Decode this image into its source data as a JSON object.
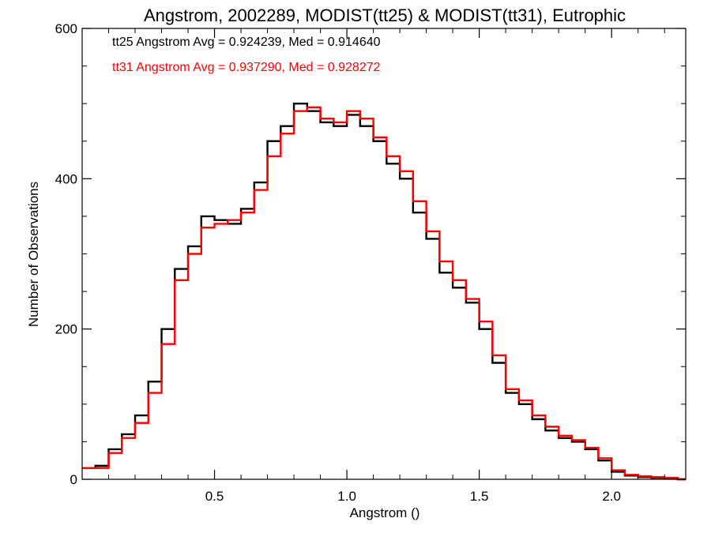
{
  "chart_data": {
    "type": "line",
    "step": true,
    "title": "Angstrom, 2002289, MODIST(tt25) & MODIST(tt31), Eutrophic",
    "xlabel": "Angstrom ()",
    "ylabel": "Number of Observations",
    "xlim": [
      0.0,
      2.28
    ],
    "ylim": [
      0,
      600
    ],
    "xticks": [
      0.5,
      1.0,
      1.5,
      2.0
    ],
    "xtick_labels": [
      "0.5",
      "1.0",
      "1.5",
      "2.0"
    ],
    "yticks": [
      0,
      200,
      400,
      600
    ],
    "ytick_labels": [
      "0",
      "200",
      "400",
      "600"
    ],
    "grid": false,
    "annotations": [
      {
        "text": "tt25 Angstrom Avg = 0.924239, Med = 0.914640",
        "color": "#000000"
      },
      {
        "text": "tt31 Angstrom Avg = 0.937290, Med = 0.928272",
        "color": "#ff0000"
      }
    ],
    "series": [
      {
        "color": "#000000",
        "x": [
          0.0,
          0.05,
          0.1,
          0.15,
          0.2,
          0.25,
          0.3,
          0.35,
          0.4,
          0.45,
          0.5,
          0.55,
          0.6,
          0.65,
          0.7,
          0.75,
          0.8,
          0.85,
          0.9,
          0.95,
          1.0,
          1.05,
          1.1,
          1.15,
          1.2,
          1.25,
          1.3,
          1.35,
          1.4,
          1.45,
          1.5,
          1.55,
          1.6,
          1.65,
          1.7,
          1.75,
          1.8,
          1.85,
          1.9,
          1.95,
          2.0,
          2.05,
          2.1,
          2.15,
          2.2,
          2.25
        ],
        "values": [
          15,
          18,
          40,
          60,
          85,
          130,
          200,
          280,
          310,
          350,
          345,
          340,
          360,
          395,
          450,
          470,
          500,
          490,
          475,
          470,
          485,
          470,
          450,
          420,
          400,
          355,
          320,
          275,
          255,
          235,
          200,
          155,
          115,
          100,
          80,
          65,
          55,
          50,
          40,
          25,
          10,
          5,
          3,
          2,
          1,
          0
        ]
      },
      {
        "color": "#ff0000",
        "x": [
          0.0,
          0.05,
          0.1,
          0.15,
          0.2,
          0.25,
          0.3,
          0.35,
          0.4,
          0.45,
          0.5,
          0.55,
          0.6,
          0.65,
          0.7,
          0.75,
          0.8,
          0.85,
          0.9,
          0.95,
          1.0,
          1.05,
          1.1,
          1.15,
          1.2,
          1.25,
          1.3,
          1.35,
          1.4,
          1.45,
          1.5,
          1.55,
          1.6,
          1.65,
          1.7,
          1.75,
          1.8,
          1.85,
          1.9,
          1.95,
          2.0,
          2.05,
          2.1,
          2.15,
          2.2,
          2.25
        ],
        "values": [
          15,
          15,
          35,
          55,
          75,
          115,
          180,
          265,
          300,
          335,
          340,
          345,
          355,
          385,
          430,
          460,
          490,
          495,
          480,
          475,
          490,
          480,
          455,
          430,
          410,
          370,
          330,
          290,
          265,
          240,
          210,
          165,
          120,
          105,
          85,
          70,
          58,
          52,
          42,
          28,
          12,
          6,
          4,
          3,
          2,
          0
        ]
      }
    ]
  }
}
